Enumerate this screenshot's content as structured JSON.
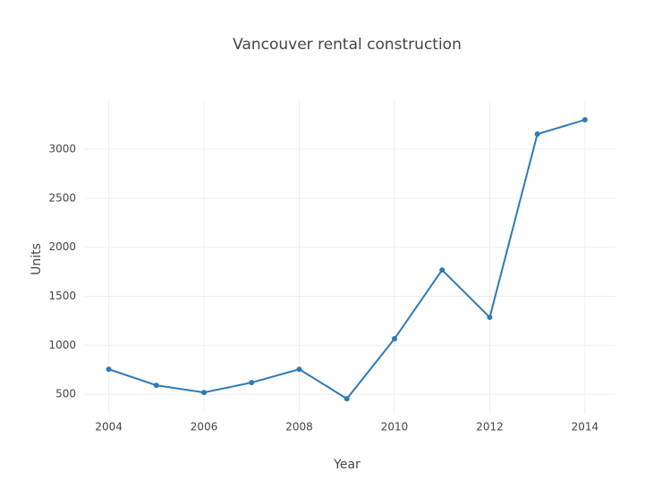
{
  "chart_data": {
    "type": "line",
    "title": "Vancouver rental construction",
    "x_label": "Year",
    "y_label": "Units",
    "x": [
      2004,
      2005,
      2006,
      2007,
      2008,
      2009,
      2010,
      2011,
      2012,
      2013,
      2014
    ],
    "series": [
      {
        "name": "Units",
        "color": "#2e7ab6",
        "values": [
          755,
          591,
          518,
          619,
          755,
          454,
          1066,
          1768,
          1285,
          3155,
          3301
        ]
      }
    ],
    "xlim": [
      2003.5,
      2014.64
    ],
    "xticks": [
      2004,
      2006,
      2008,
      2010,
      2012,
      2014
    ],
    "ylim": [
      300,
      3493
    ],
    "yticks": [
      500,
      1000,
      1500,
      2000,
      2500,
      3000
    ],
    "grid": true,
    "markers": true
  }
}
